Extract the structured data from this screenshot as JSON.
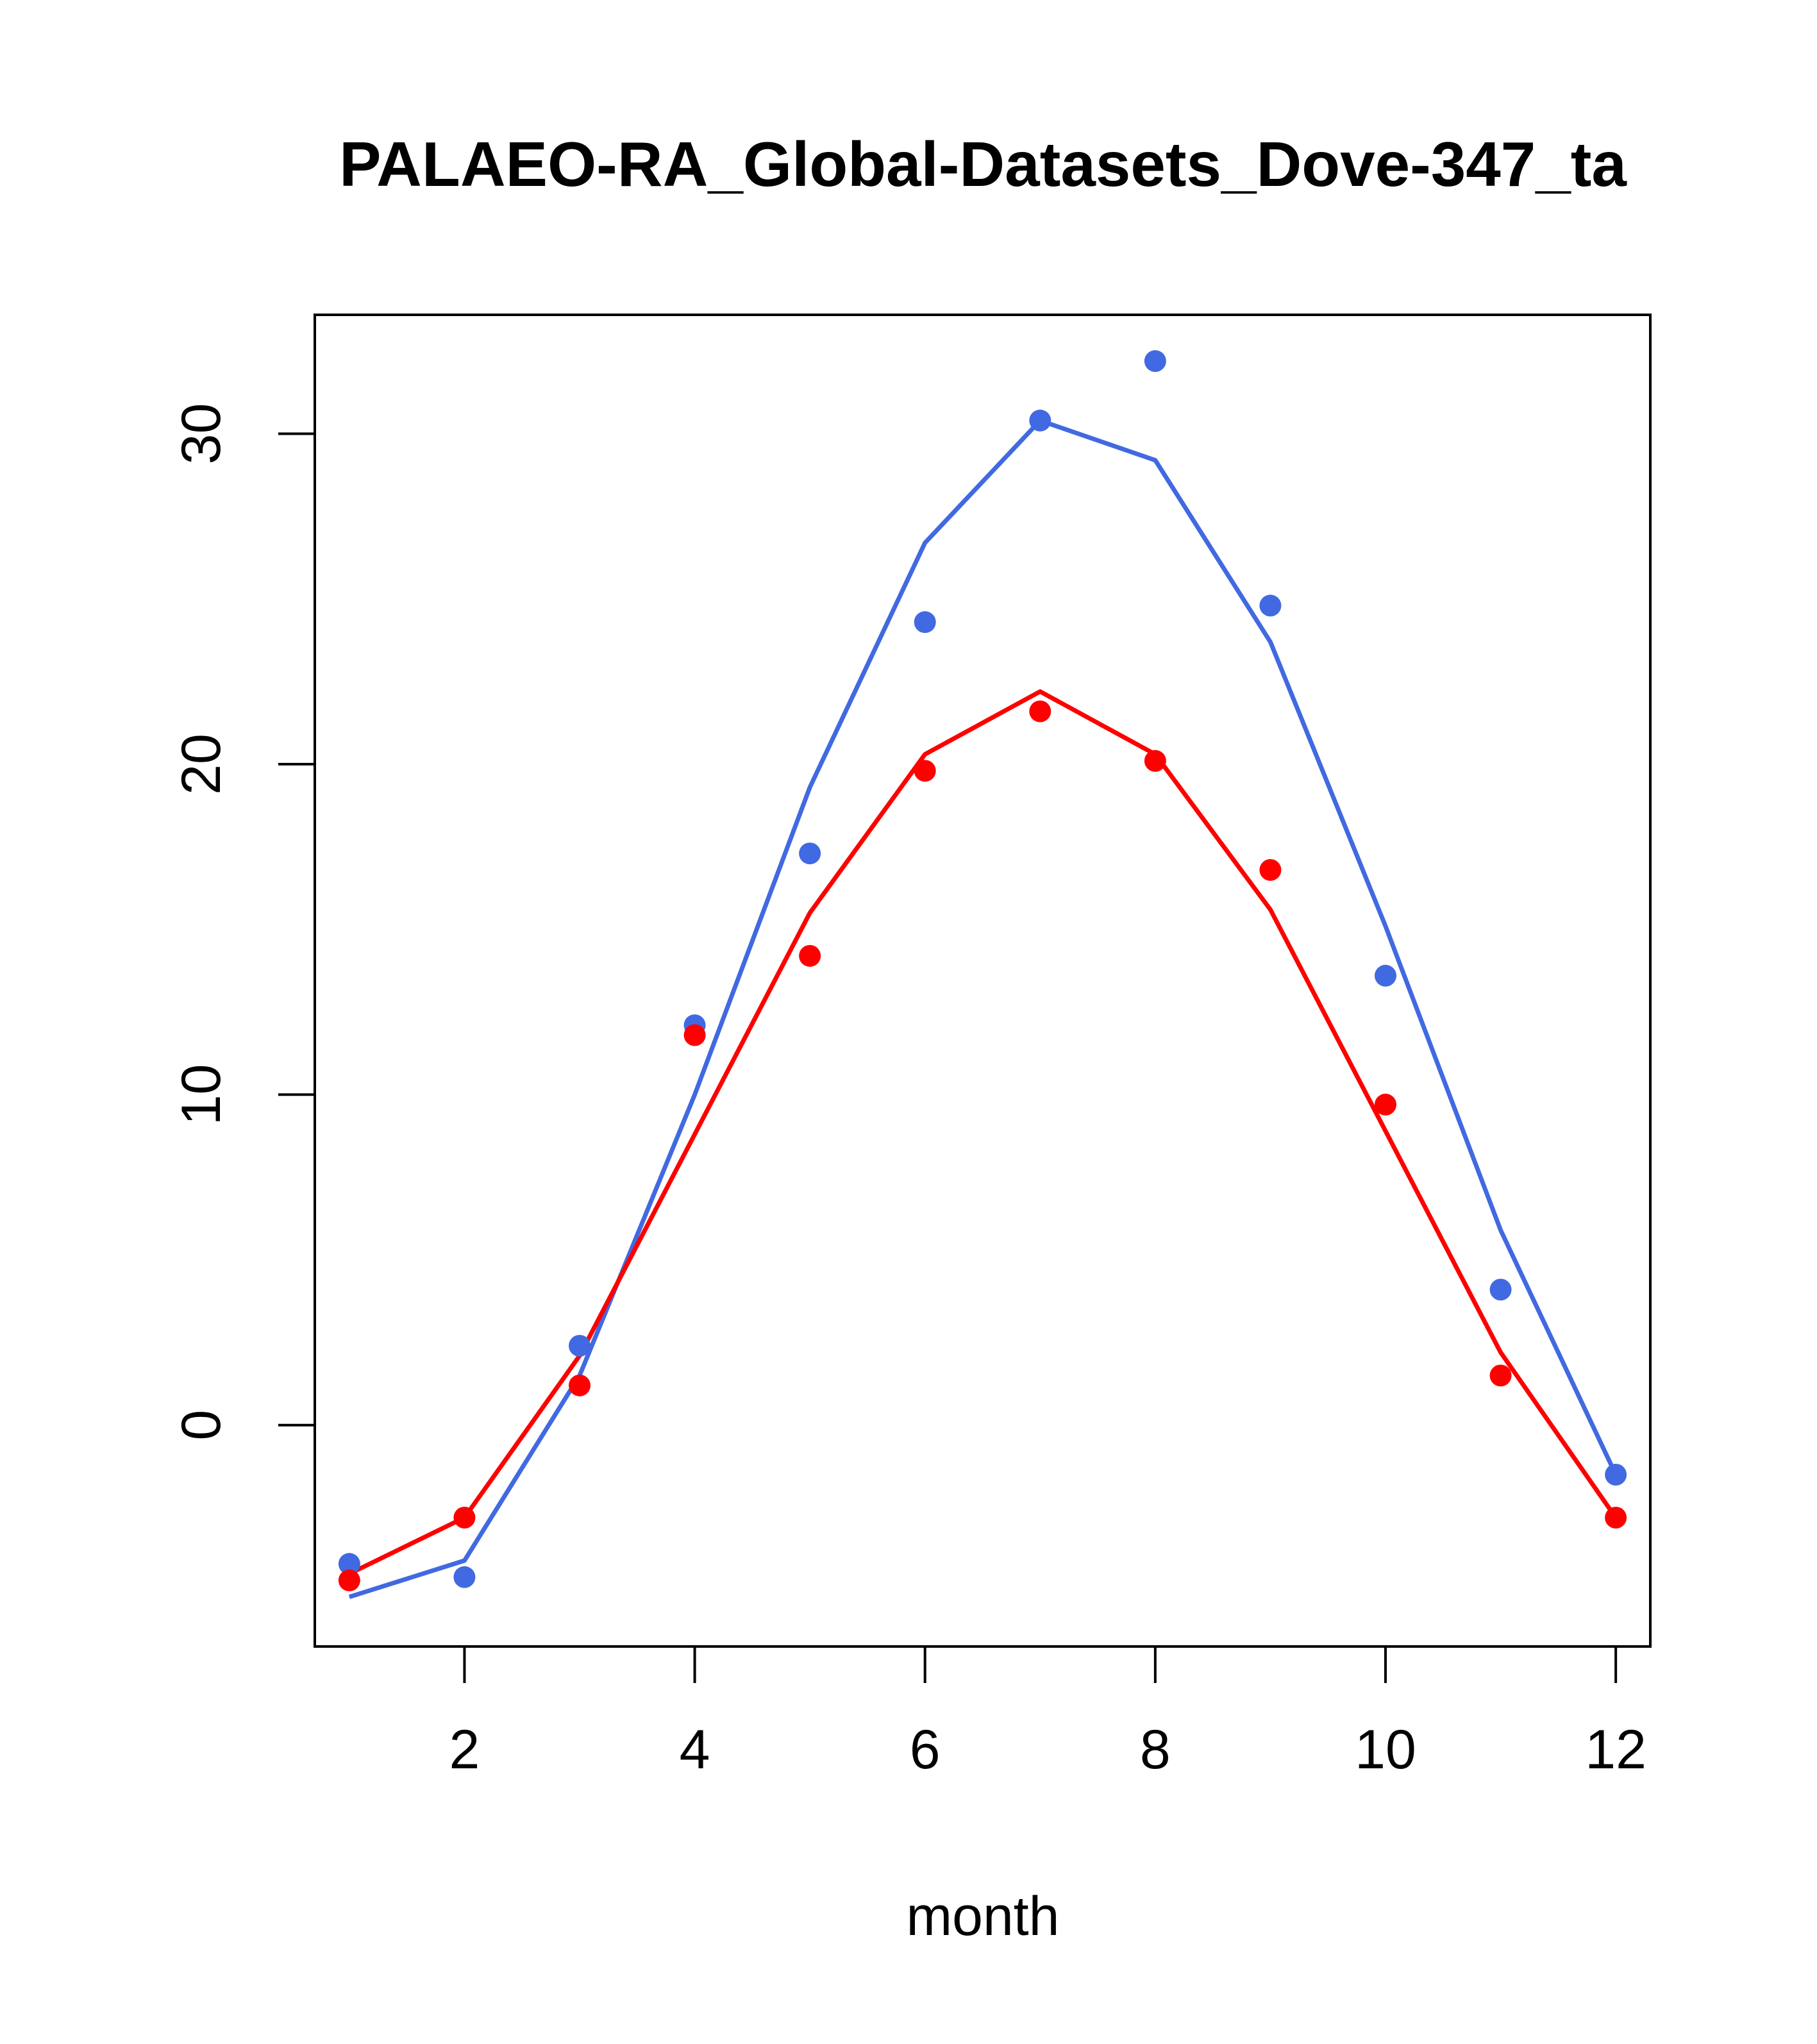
{
  "chart_data": {
    "type": "line",
    "title": "PALAEO-RA_Global-Datasets_Dove-347_ta",
    "xlabel": "month",
    "ylabel": "",
    "xlim": [
      0.7,
      12.3
    ],
    "ylim": [
      -6.7,
      33.6
    ],
    "x_ticks": [
      2,
      4,
      6,
      8,
      10,
      12
    ],
    "y_ticks": [
      0,
      10,
      20,
      30
    ],
    "x": [
      1,
      2,
      3,
      4,
      5,
      6,
      7,
      8,
      9,
      10,
      11,
      12
    ],
    "series": [
      {
        "name": "blue-points",
        "kind": "points",
        "color": "#4169E1",
        "values": [
          -4.2,
          -4.6,
          2.4,
          12.1,
          17.3,
          24.3,
          30.4,
          32.2,
          24.8,
          13.6,
          4.1,
          -1.5
        ]
      },
      {
        "name": "blue-line",
        "kind": "line",
        "color": "#4169E1",
        "values": [
          -5.2,
          -4.1,
          1.5,
          10.0,
          19.3,
          26.7,
          30.4,
          29.2,
          23.7,
          15.1,
          5.9,
          -1.5
        ]
      },
      {
        "name": "red-points",
        "kind": "points",
        "color": "#FF0000",
        "values": [
          -4.7,
          -2.8,
          1.2,
          11.8,
          14.2,
          19.8,
          21.6,
          20.1,
          16.8,
          9.7,
          1.5,
          -2.8
        ]
      },
      {
        "name": "red-line",
        "kind": "line",
        "color": "#FF0000",
        "values": [
          -4.5,
          -2.8,
          2.1,
          8.8,
          15.5,
          20.3,
          22.2,
          20.3,
          15.6,
          8.9,
          2.2,
          -2.8
        ]
      }
    ]
  }
}
